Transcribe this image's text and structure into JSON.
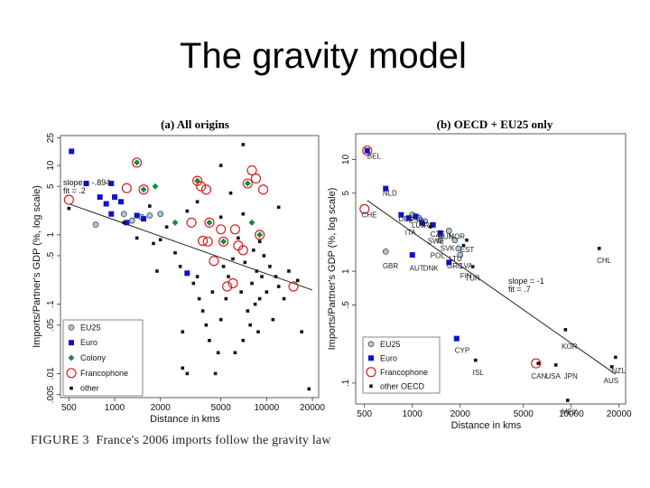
{
  "slide": {
    "title": "The gravity model",
    "caption_label": "FIGURE 3",
    "caption_text": "France's 2006 imports follow the gravity law"
  },
  "chart_data": [
    {
      "type": "scatter",
      "title": "(a) All origins",
      "xlabel": "Distance in kms",
      "ylabel": "Imports/Partner's GDP (%, log scale)",
      "xscale": "log",
      "yscale": "log",
      "xlim": [
        440,
        22000
      ],
      "ylim": [
        0.0045,
        27
      ],
      "xticks": [
        500,
        1000,
        2000,
        5000,
        10000,
        20000
      ],
      "xtick_labels": [
        "500",
        "1000",
        "2000",
        "5000",
        "10000",
        "20000"
      ],
      "yticks": [
        0.005,
        0.01,
        0.05,
        0.1,
        0.5,
        1,
        5,
        10,
        25
      ],
      "ytick_labels": [
        ".005",
        ".01",
        ".05",
        ".1",
        ".5",
        "1",
        "5",
        "10",
        "25"
      ],
      "slope_text": "slope = -.894",
      "fit_text": "fit = .2",
      "fit_line": [
        [
          500,
          2.8
        ],
        [
          20000,
          0.16
        ]
      ],
      "legend": [
        "EU25",
        "Euro",
        "Colony",
        "Francophone",
        "other"
      ],
      "series": [
        {
          "name": "EU25",
          "style": "eu25",
          "points": [
            [
              750,
              1.4
            ],
            [
              1150,
              2
            ],
            [
              1300,
              1.6
            ],
            [
              1500,
              1.8
            ],
            [
              1700,
              1.9
            ],
            [
              2000,
              2
            ]
          ]
        },
        {
          "name": "Euro",
          "style": "euro",
          "points": [
            [
              520,
              16
            ],
            [
              800,
              3.5
            ],
            [
              880,
              2.8
            ],
            [
              950,
              2
            ],
            [
              1000,
              3.5
            ],
            [
              1100,
              3
            ],
            [
              1200,
              1.5
            ],
            [
              1400,
              1.9
            ],
            [
              1550,
              1.7
            ],
            [
              3000,
              0.28
            ],
            [
              650,
              5.5
            ],
            [
              950,
              5.5
            ]
          ]
        },
        {
          "name": "Colony",
          "style": "colony",
          "points": [
            [
              1400,
              11
            ],
            [
              1550,
              4.5
            ],
            [
              1850,
              5
            ],
            [
              2500,
              1.5
            ],
            [
              3500,
              6
            ],
            [
              4200,
              1.5
            ],
            [
              5200,
              0.8
            ],
            [
              7500,
              5.5
            ],
            [
              8000,
              1.5
            ],
            [
              9000,
              1
            ]
          ]
        },
        {
          "name": "Francophone",
          "style": "franco",
          "points": [
            [
              500,
              3.2
            ],
            [
              1200,
              4.7
            ],
            [
              1400,
              11
            ],
            [
              1550,
              4.5
            ],
            [
              3200,
              1.5
            ],
            [
              3500,
              6
            ],
            [
              3700,
              5
            ],
            [
              3800,
              0.82
            ],
            [
              4000,
              4.5
            ],
            [
              4100,
              0.8
            ],
            [
              4200,
              1.5
            ],
            [
              4500,
              0.42
            ],
            [
              5000,
              1.2
            ],
            [
              5200,
              0.8
            ],
            [
              5500,
              0.18
            ],
            [
              6000,
              0.2
            ],
            [
              6200,
              1.2
            ],
            [
              6500,
              0.7
            ],
            [
              7000,
              0.6
            ],
            [
              7500,
              5.5
            ],
            [
              8000,
              8.5
            ],
            [
              8500,
              6.5
            ],
            [
              9000,
              1
            ],
            [
              9500,
              4.5
            ],
            [
              15000,
              0.18
            ]
          ]
        },
        {
          "name": "other",
          "style": "other",
          "points": [
            [
              1150,
              1.5
            ],
            [
              1400,
              0.9
            ],
            [
              1800,
              0.75
            ],
            [
              2000,
              0.85
            ],
            [
              2200,
              1.3
            ],
            [
              2500,
              0.55
            ],
            [
              2700,
              0.35
            ],
            [
              3000,
              2.2
            ],
            [
              3300,
              0.2
            ],
            [
              3500,
              0.25
            ],
            [
              3600,
              0.12
            ],
            [
              3800,
              0.08
            ],
            [
              4000,
              0.05
            ],
            [
              4200,
              0.03
            ],
            [
              4400,
              0.15
            ],
            [
              4600,
              0.01
            ],
            [
              4800,
              0.02
            ],
            [
              5000,
              0.06
            ],
            [
              5200,
              0.35
            ],
            [
              5400,
              0.12
            ],
            [
              5600,
              0.25
            ],
            [
              5800,
              4
            ],
            [
              6000,
              0.45
            ],
            [
              6200,
              0.02
            ],
            [
              6500,
              0.9
            ],
            [
              6800,
              0.15
            ],
            [
              7000,
              0.03
            ],
            [
              7200,
              0.4
            ],
            [
              7500,
              0.08
            ],
            [
              7800,
              0.05
            ],
            [
              8000,
              0.2
            ],
            [
              8200,
              0.6
            ],
            [
              8400,
              0.1
            ],
            [
              8600,
              0.3
            ],
            [
              8800,
              0.04
            ],
            [
              9000,
              0.12
            ],
            [
              9300,
              0.25
            ],
            [
              9600,
              0.5
            ],
            [
              10000,
              0.15
            ],
            [
              10500,
              0.35
            ],
            [
              11000,
              0.06
            ],
            [
              11500,
              0.25
            ],
            [
              12000,
              0.18
            ],
            [
              13000,
              0.12
            ],
            [
              14000,
              0.3
            ],
            [
              16000,
              0.22
            ],
            [
              17000,
              0.04
            ],
            [
              19000,
              0.006
            ],
            [
              500,
              2.4
            ],
            [
              1700,
              2.6
            ],
            [
              1900,
              0.3
            ],
            [
              2800,
              0.04
            ],
            [
              3000,
              0.01
            ],
            [
              3500,
              3
            ],
            [
              5000,
              10
            ],
            [
              5000,
              1.8
            ],
            [
              7000,
              2
            ],
            [
              9000,
              0.8
            ],
            [
              12000,
              2.5
            ],
            [
              7000,
              20
            ],
            [
              2800,
              0.012
            ]
          ]
        }
      ]
    },
    {
      "type": "scatter",
      "title": "(b) OECD + EU25 only",
      "xlabel": "Distance in kms",
      "ylabel": "Imports/Partner's GDP (%, log scale)",
      "xscale": "log",
      "yscale": "log",
      "xlim": [
        440,
        22000
      ],
      "ylim": [
        0.065,
        17
      ],
      "xticks": [
        500,
        1000,
        2000,
        5000,
        10000,
        20000
      ],
      "xtick_labels": [
        "500",
        "1000",
        "2000",
        "5000",
        "10000",
        "20000"
      ],
      "yticks": [
        0.1,
        0.5,
        1,
        5,
        10
      ],
      "ytick_labels": [
        ".1",
        ".5",
        "1",
        "5",
        "10"
      ],
      "slope_text": "slope = -1",
      "fit_text": "fit = .7",
      "fit_line": [
        [
          520,
          4.3
        ],
        [
          19000,
          0.12
        ]
      ],
      "legend": [
        "EU25",
        "Euro",
        "Francophone",
        "other OECD"
      ],
      "series": [
        {
          "name": "EU25",
          "style": "eu25",
          "points": [
            [
              680,
              1.5
            ],
            [
              1000,
              3.2
            ],
            [
              1100,
              3
            ],
            [
              1200,
              2.8
            ],
            [
              1500,
              1.9
            ],
            [
              1700,
              2.3
            ],
            [
              1850,
              1.9
            ],
            [
              1950,
              1.6
            ],
            [
              2000,
              1.4
            ]
          ]
        },
        {
          "name": "Euro",
          "style": "euro",
          "points": [
            [
              520,
              12
            ],
            [
              680,
              5.5
            ],
            [
              850,
              3.2
            ],
            [
              950,
              3
            ],
            [
              1050,
              3.1
            ],
            [
              1150,
              2.7
            ],
            [
              1350,
              2.6
            ],
            [
              1500,
              2.2
            ],
            [
              1000,
              1.4
            ],
            [
              1700,
              1.2
            ],
            [
              1900,
              0.25
            ]
          ]
        },
        {
          "name": "Francophone",
          "style": "franco",
          "points": [
            [
              500,
              3.6
            ],
            [
              520,
              12
            ],
            [
              6000,
              0.15
            ]
          ]
        },
        {
          "name": "other OECD",
          "style": "other",
          "points": [
            [
              1300,
              2.5
            ],
            [
              2400,
              1.1
            ],
            [
              2200,
              1.9
            ],
            [
              2500,
              0.16
            ],
            [
              6200,
              0.15
            ],
            [
              8000,
              0.145
            ],
            [
              9200,
              0.3
            ],
            [
              9500,
              0.07
            ],
            [
              15000,
              1.6
            ],
            [
              18000,
              0.14
            ],
            [
              19000,
              0.17
            ],
            [
              2100,
              1.7
            ]
          ]
        }
      ],
      "labels": [
        {
          "text": "BEL",
          "x": 520,
          "y": 12
        },
        {
          "text": "NLD",
          "x": 650,
          "y": 5.6
        },
        {
          "text": "CHE",
          "x": 480,
          "y": 3.6
        },
        {
          "text": "DEU",
          "x": 820,
          "y": 3.3
        },
        {
          "text": "ESP",
          "x": 950,
          "y": 3.2
        },
        {
          "text": "LUX",
          "x": 990,
          "y": 2.9
        },
        {
          "text": "IRL",
          "x": 1150,
          "y": 2.9
        },
        {
          "text": "ITA",
          "x": 900,
          "y": 2.5
        },
        {
          "text": "CZE",
          "x": 1300,
          "y": 2.4
        },
        {
          "text": "SWE",
          "x": 1250,
          "y": 2.1
        },
        {
          "text": "HUN",
          "x": 1450,
          "y": 2.3
        },
        {
          "text": "NOR",
          "x": 1700,
          "y": 2.3
        },
        {
          "text": "SVK",
          "x": 1500,
          "y": 1.8
        },
        {
          "text": "EST",
          "x": 2000,
          "y": 1.75
        },
        {
          "text": "POL",
          "x": 1300,
          "y": 1.55
        },
        {
          "text": "LTU",
          "x": 1700,
          "y": 1.45
        },
        {
          "text": "GRC",
          "x": 1650,
          "y": 1.25
        },
        {
          "text": "LVA",
          "x": 2000,
          "y": 1.25
        },
        {
          "text": "GBR",
          "x": 650,
          "y": 1.25
        },
        {
          "text": "AUT",
          "x": 960,
          "y": 1.2
        },
        {
          "text": "DNK",
          "x": 1170,
          "y": 1.2
        },
        {
          "text": "FIN",
          "x": 2000,
          "y": 1.02
        },
        {
          "text": "TUR",
          "x": 2150,
          "y": 0.98
        },
        {
          "text": "CHL",
          "x": 14500,
          "y": 1.4
        },
        {
          "text": "KOR",
          "x": 8700,
          "y": 0.24
        },
        {
          "text": "CYP",
          "x": 1850,
          "y": 0.22
        },
        {
          "text": "ISL",
          "x": 2400,
          "y": 0.14
        },
        {
          "text": "CAN",
          "x": 5600,
          "y": 0.13
        },
        {
          "text": "USA",
          "x": 6900,
          "y": 0.13
        },
        {
          "text": "JPN",
          "x": 9000,
          "y": 0.13
        },
        {
          "text": "NZL",
          "x": 18000,
          "y": 0.145
        },
        {
          "text": "AUS",
          "x": 16000,
          "y": 0.118
        },
        {
          "text": "MEX",
          "x": 8700,
          "y": 0.062
        }
      ]
    }
  ]
}
